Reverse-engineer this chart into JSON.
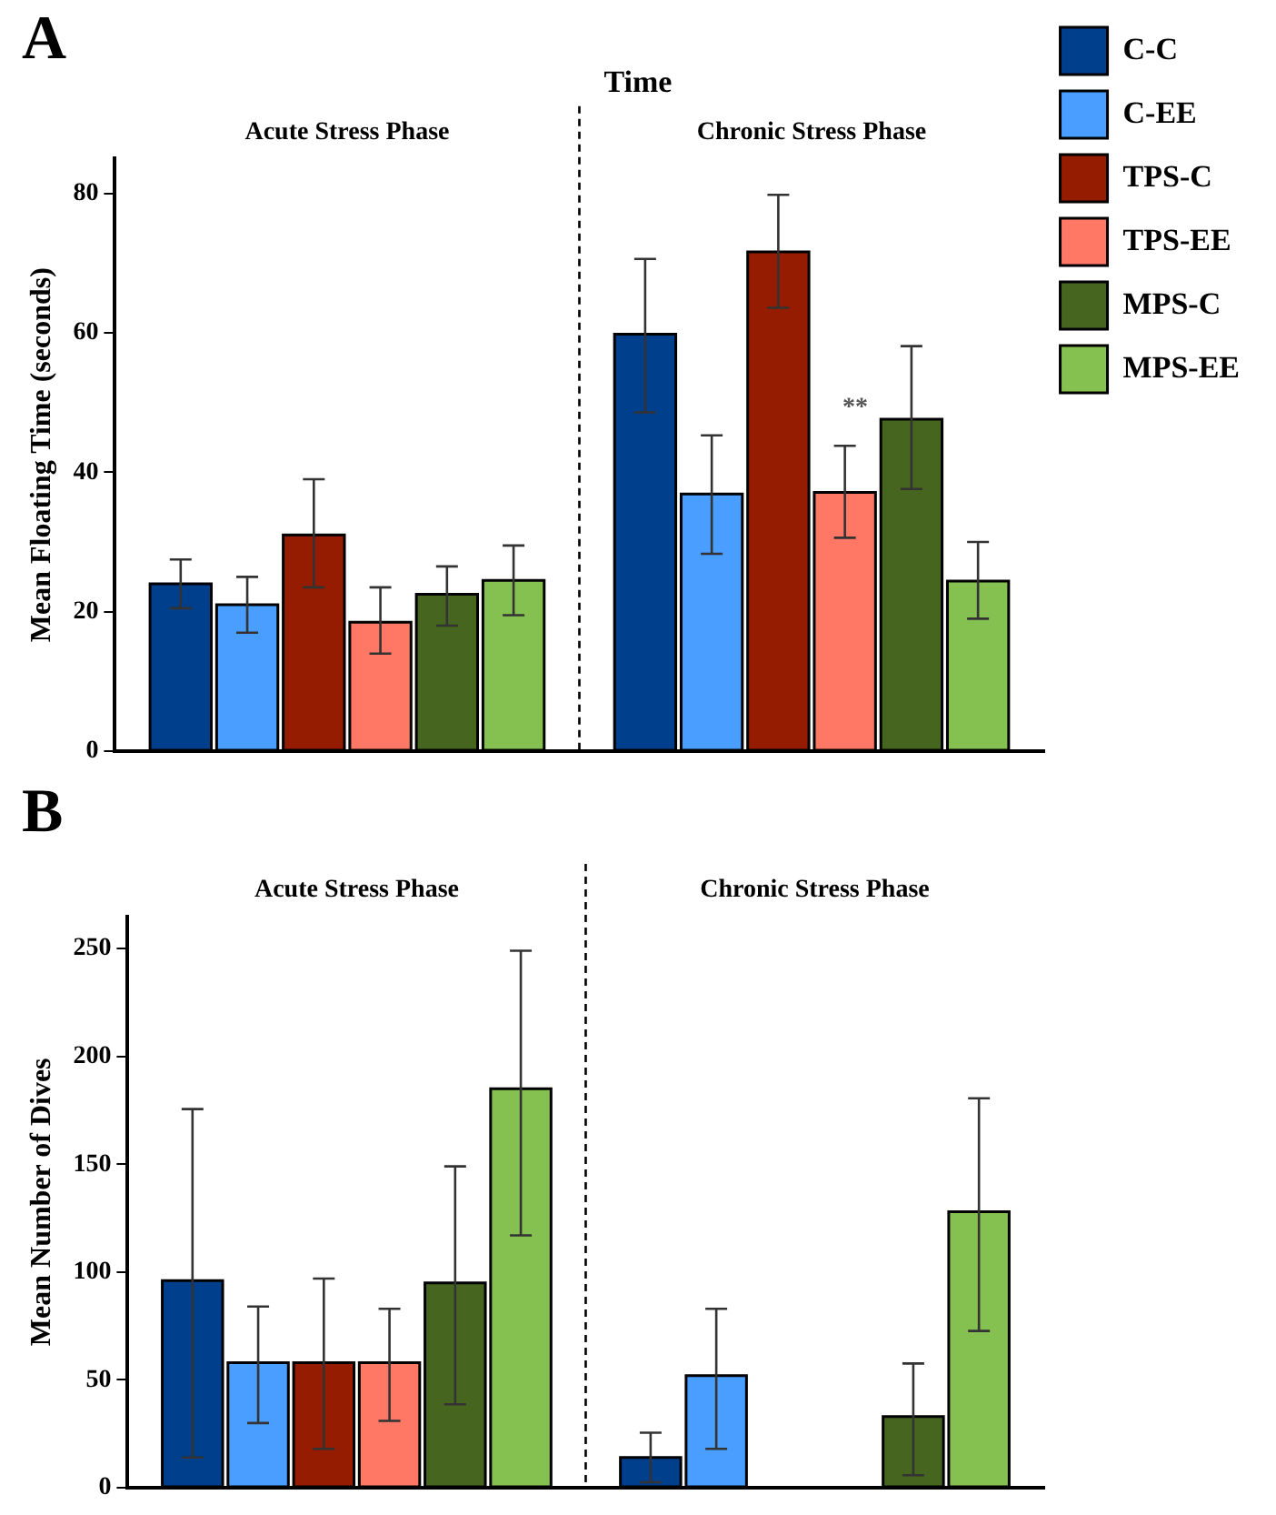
{
  "chart_data": [
    {
      "type": "bar",
      "title": "Time",
      "ylabel": "Mean Floating Time (seconds)",
      "categories": [
        "Acute Stress Phase",
        "Chronic Stress Phase"
      ],
      "ylim": [
        0,
        85
      ],
      "yticks": [
        0,
        20,
        40,
        60,
        80
      ],
      "grid": false,
      "legend": "top right",
      "annotations": [
        "A",
        {
          "text": "**",
          "x": "Chronic Stress Phase",
          "y": 49
        }
      ],
      "series": [
        {
          "name": "C-C",
          "color": "#003f8c",
          "values": [
            24,
            59.8
          ],
          "errors": [
            [
              20.5,
              27.5
            ],
            [
              48.6,
              70.6
            ]
          ]
        },
        {
          "name": "C-EE",
          "color": "#4a9eff",
          "values": [
            21,
            36.9
          ],
          "errors": [
            [
              17,
              25
            ],
            [
              28.3,
              45.3
            ]
          ]
        },
        {
          "name": "TPS-C",
          "color": "#951c00",
          "values": [
            31,
            71.6
          ],
          "errors": [
            [
              23.5,
              39
            ],
            [
              63.6,
              79.8
            ]
          ]
        },
        {
          "name": "TPS-EE",
          "color": "#ff7866",
          "values": [
            18.5,
            37.1
          ],
          "errors": [
            [
              14,
              23.5
            ],
            [
              30.6,
              43.8
            ]
          ]
        },
        {
          "name": "MPS-C",
          "color": "#466620",
          "values": [
            22.5,
            47.6
          ],
          "errors": [
            [
              18,
              26.5
            ],
            [
              37.6,
              58.1
            ]
          ]
        },
        {
          "name": "MPS-EE",
          "color": "#84c150",
          "values": [
            24.5,
            24.4
          ],
          "errors": [
            [
              19.5,
              29.5
            ],
            [
              19,
              30
            ]
          ]
        }
      ]
    },
    {
      "type": "bar",
      "ylabel": "Mean Number of Dives",
      "categories": [
        "Acute Stress Phase",
        "Chronic Stress Phase"
      ],
      "ylim": [
        0,
        265
      ],
      "yticks": [
        0,
        50,
        100,
        150,
        200,
        250
      ],
      "grid": false,
      "legend": false,
      "annotations": [
        "B"
      ],
      "series": [
        {
          "color": "#003f8c",
          "values": [
            96,
            14
          ],
          "errors": [
            [
              14,
              175.6
            ],
            [
              2.5,
              25.5
            ]
          ]
        },
        {
          "color": "#4a9eff",
          "values": [
            58,
            52
          ],
          "errors": [
            [
              30,
              84
            ],
            [
              18,
              83
            ]
          ]
        },
        {
          "color": "#951c00",
          "values": [
            58,
            null
          ],
          "errors": [
            [
              18,
              97
            ],
            null
          ]
        },
        {
          "color": "#ff7866",
          "values": [
            58,
            null
          ],
          "errors": [
            [
              31,
              83
            ],
            null
          ]
        },
        {
          "color": "#466620",
          "values": [
            95,
            33
          ],
          "errors": [
            [
              38.7,
              149
            ],
            [
              5.8,
              57.6
            ]
          ]
        },
        {
          "color": "#84c150",
          "values": [
            185,
            128
          ],
          "errors": [
            [
              117,
              249
            ],
            [
              72.7,
              180.6
            ]
          ]
        }
      ]
    }
  ]
}
